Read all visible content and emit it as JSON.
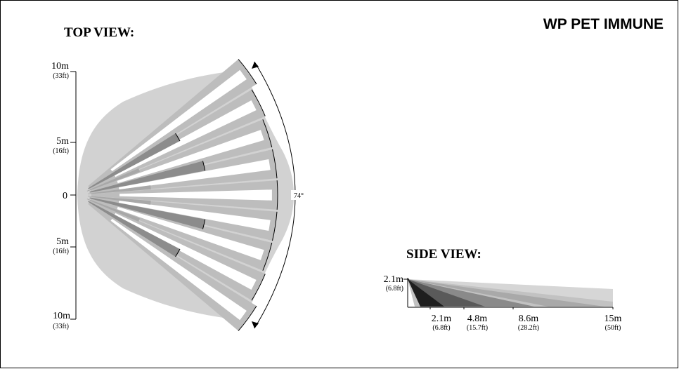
{
  "title": "WP PET IMMUNE",
  "top_view": {
    "heading": "TOP VIEW:",
    "angle_label": "74°",
    "scale": [
      {
        "m": "10m",
        "ft": "(33ft)"
      },
      {
        "m": "5m",
        "ft": "(16ft)"
      },
      {
        "m": "0",
        "ft": ""
      },
      {
        "m": "5m",
        "ft": "(16ft)"
      },
      {
        "m": "10m",
        "ft": "(33ft)"
      }
    ]
  },
  "side_view": {
    "heading": "SIDE VIEW:",
    "height": {
      "m": "2.1m",
      "ft": "(6.8ft)"
    },
    "distances": [
      {
        "m": "2.1m",
        "ft": "(6.8ft)"
      },
      {
        "m": "4.8m",
        "ft": "(15.7ft)"
      },
      {
        "m": "8.6m",
        "ft": "(28.2ft)"
      },
      {
        "m": "15m",
        "ft": "(50ft)"
      }
    ]
  },
  "colors": {
    "coverage": "#d2d2d2",
    "beam_light": "#bdbdbd",
    "beam_mid": "#8c8c8c",
    "beam_dark": "#1e1e1e",
    "gap": "#ffffff"
  }
}
